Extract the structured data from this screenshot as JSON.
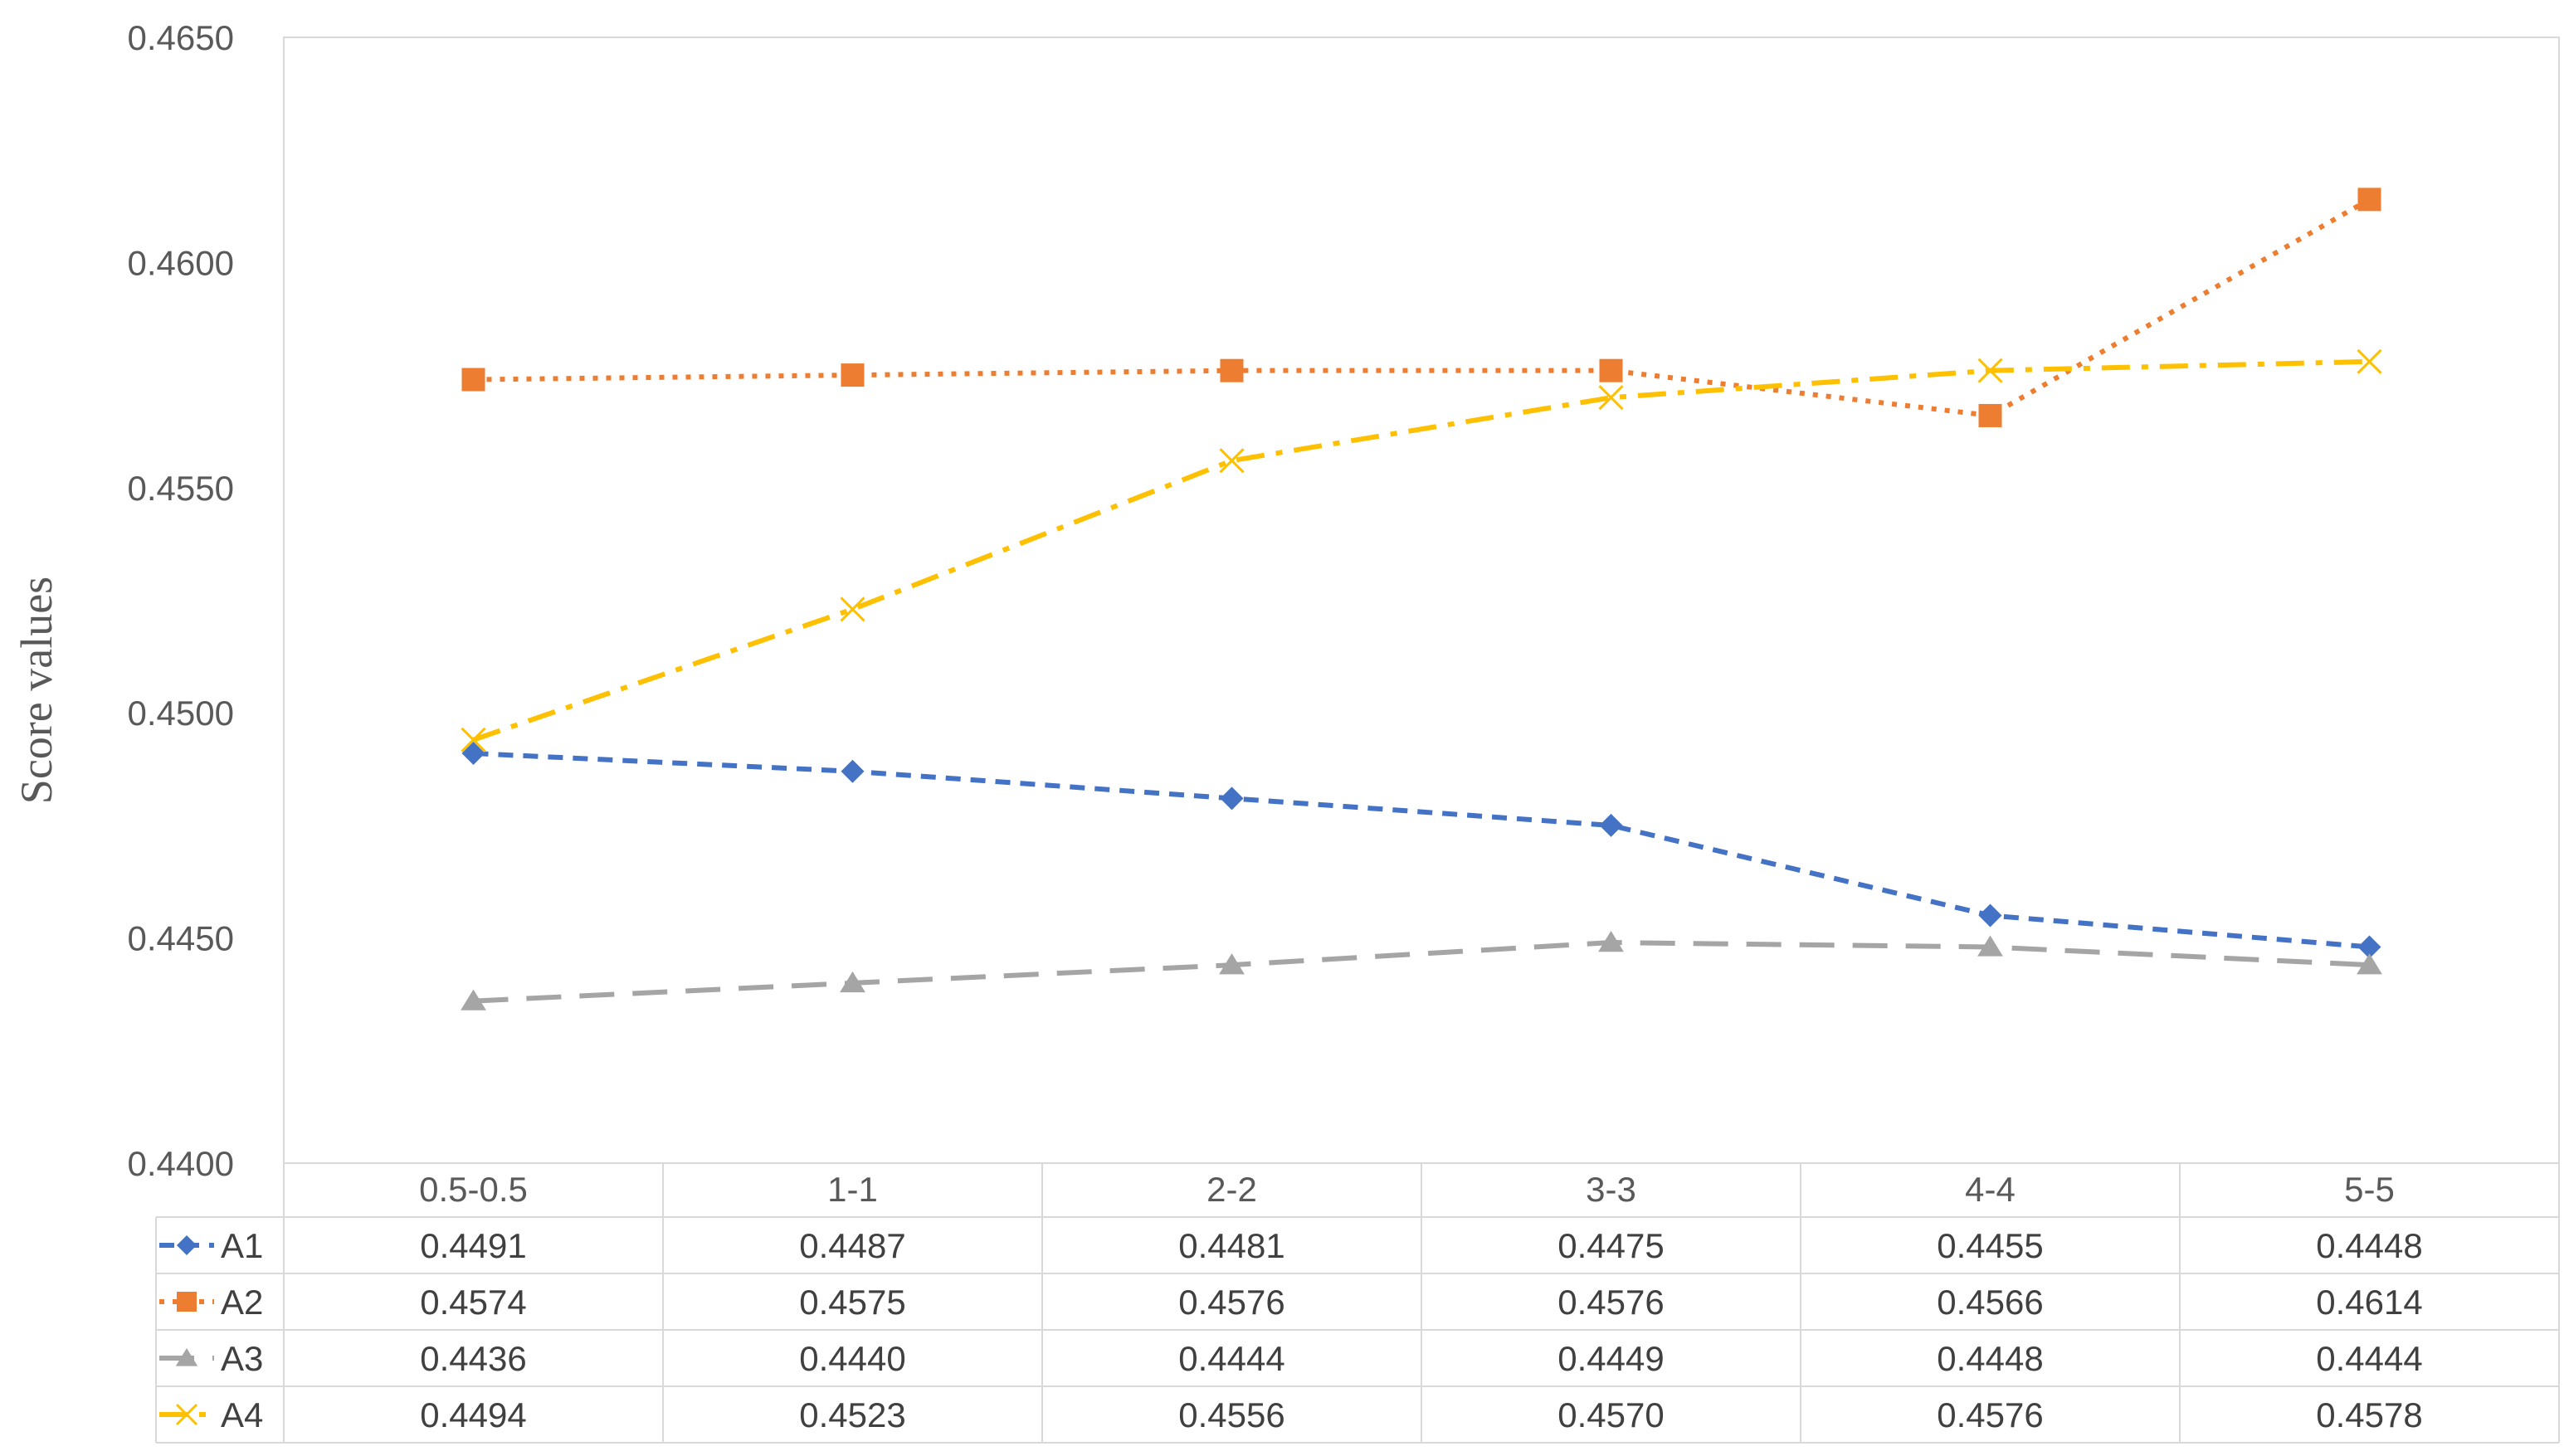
{
  "chart_data": {
    "type": "line",
    "title": "",
    "xlabel": "",
    "ylabel": "Score values",
    "ylim": [
      0.44,
      0.465
    ],
    "y_ticks": [
      "0.4400",
      "0.4450",
      "0.4500",
      "0.4550",
      "0.4600",
      "0.4650"
    ],
    "categories": [
      "0.5-0.5",
      "1-1",
      "2-2",
      "3-3",
      "4-4",
      "5-5"
    ],
    "grid": false,
    "legend_placement": "data table below plot",
    "series": [
      {
        "name": "A1",
        "values": [
          0.4491,
          0.4487,
          0.4481,
          0.4475,
          0.4455,
          0.4448
        ],
        "labels": [
          "0.4491",
          "0.4487",
          "0.4481",
          "0.4475",
          "0.4455",
          "0.4448"
        ],
        "color": "#4472C4",
        "marker": "diamond",
        "dash": "short-dash"
      },
      {
        "name": "A2",
        "values": [
          0.4574,
          0.4575,
          0.4576,
          0.4576,
          0.4566,
          0.4614
        ],
        "labels": [
          "0.4574",
          "0.4575",
          "0.4576",
          "0.4576",
          "0.4566",
          "0.4614"
        ],
        "color": "#ED7D31",
        "marker": "square",
        "dash": "dotted"
      },
      {
        "name": "A3",
        "values": [
          0.4436,
          0.444,
          0.4444,
          0.4449,
          0.4448,
          0.4444
        ],
        "labels": [
          "0.4436",
          "0.4440",
          "0.4444",
          "0.4449",
          "0.4448",
          "0.4444"
        ],
        "color": "#A5A5A5",
        "marker": "triangle",
        "dash": "long-dash"
      },
      {
        "name": "A4",
        "values": [
          0.4494,
          0.4523,
          0.4556,
          0.457,
          0.4576,
          0.4578
        ],
        "labels": [
          "0.4494",
          "0.4523",
          "0.4556",
          "0.4570",
          "0.4576",
          "0.4578"
        ],
        "color": "#FFC000",
        "marker": "x",
        "dash": "dash-dot"
      }
    ]
  }
}
